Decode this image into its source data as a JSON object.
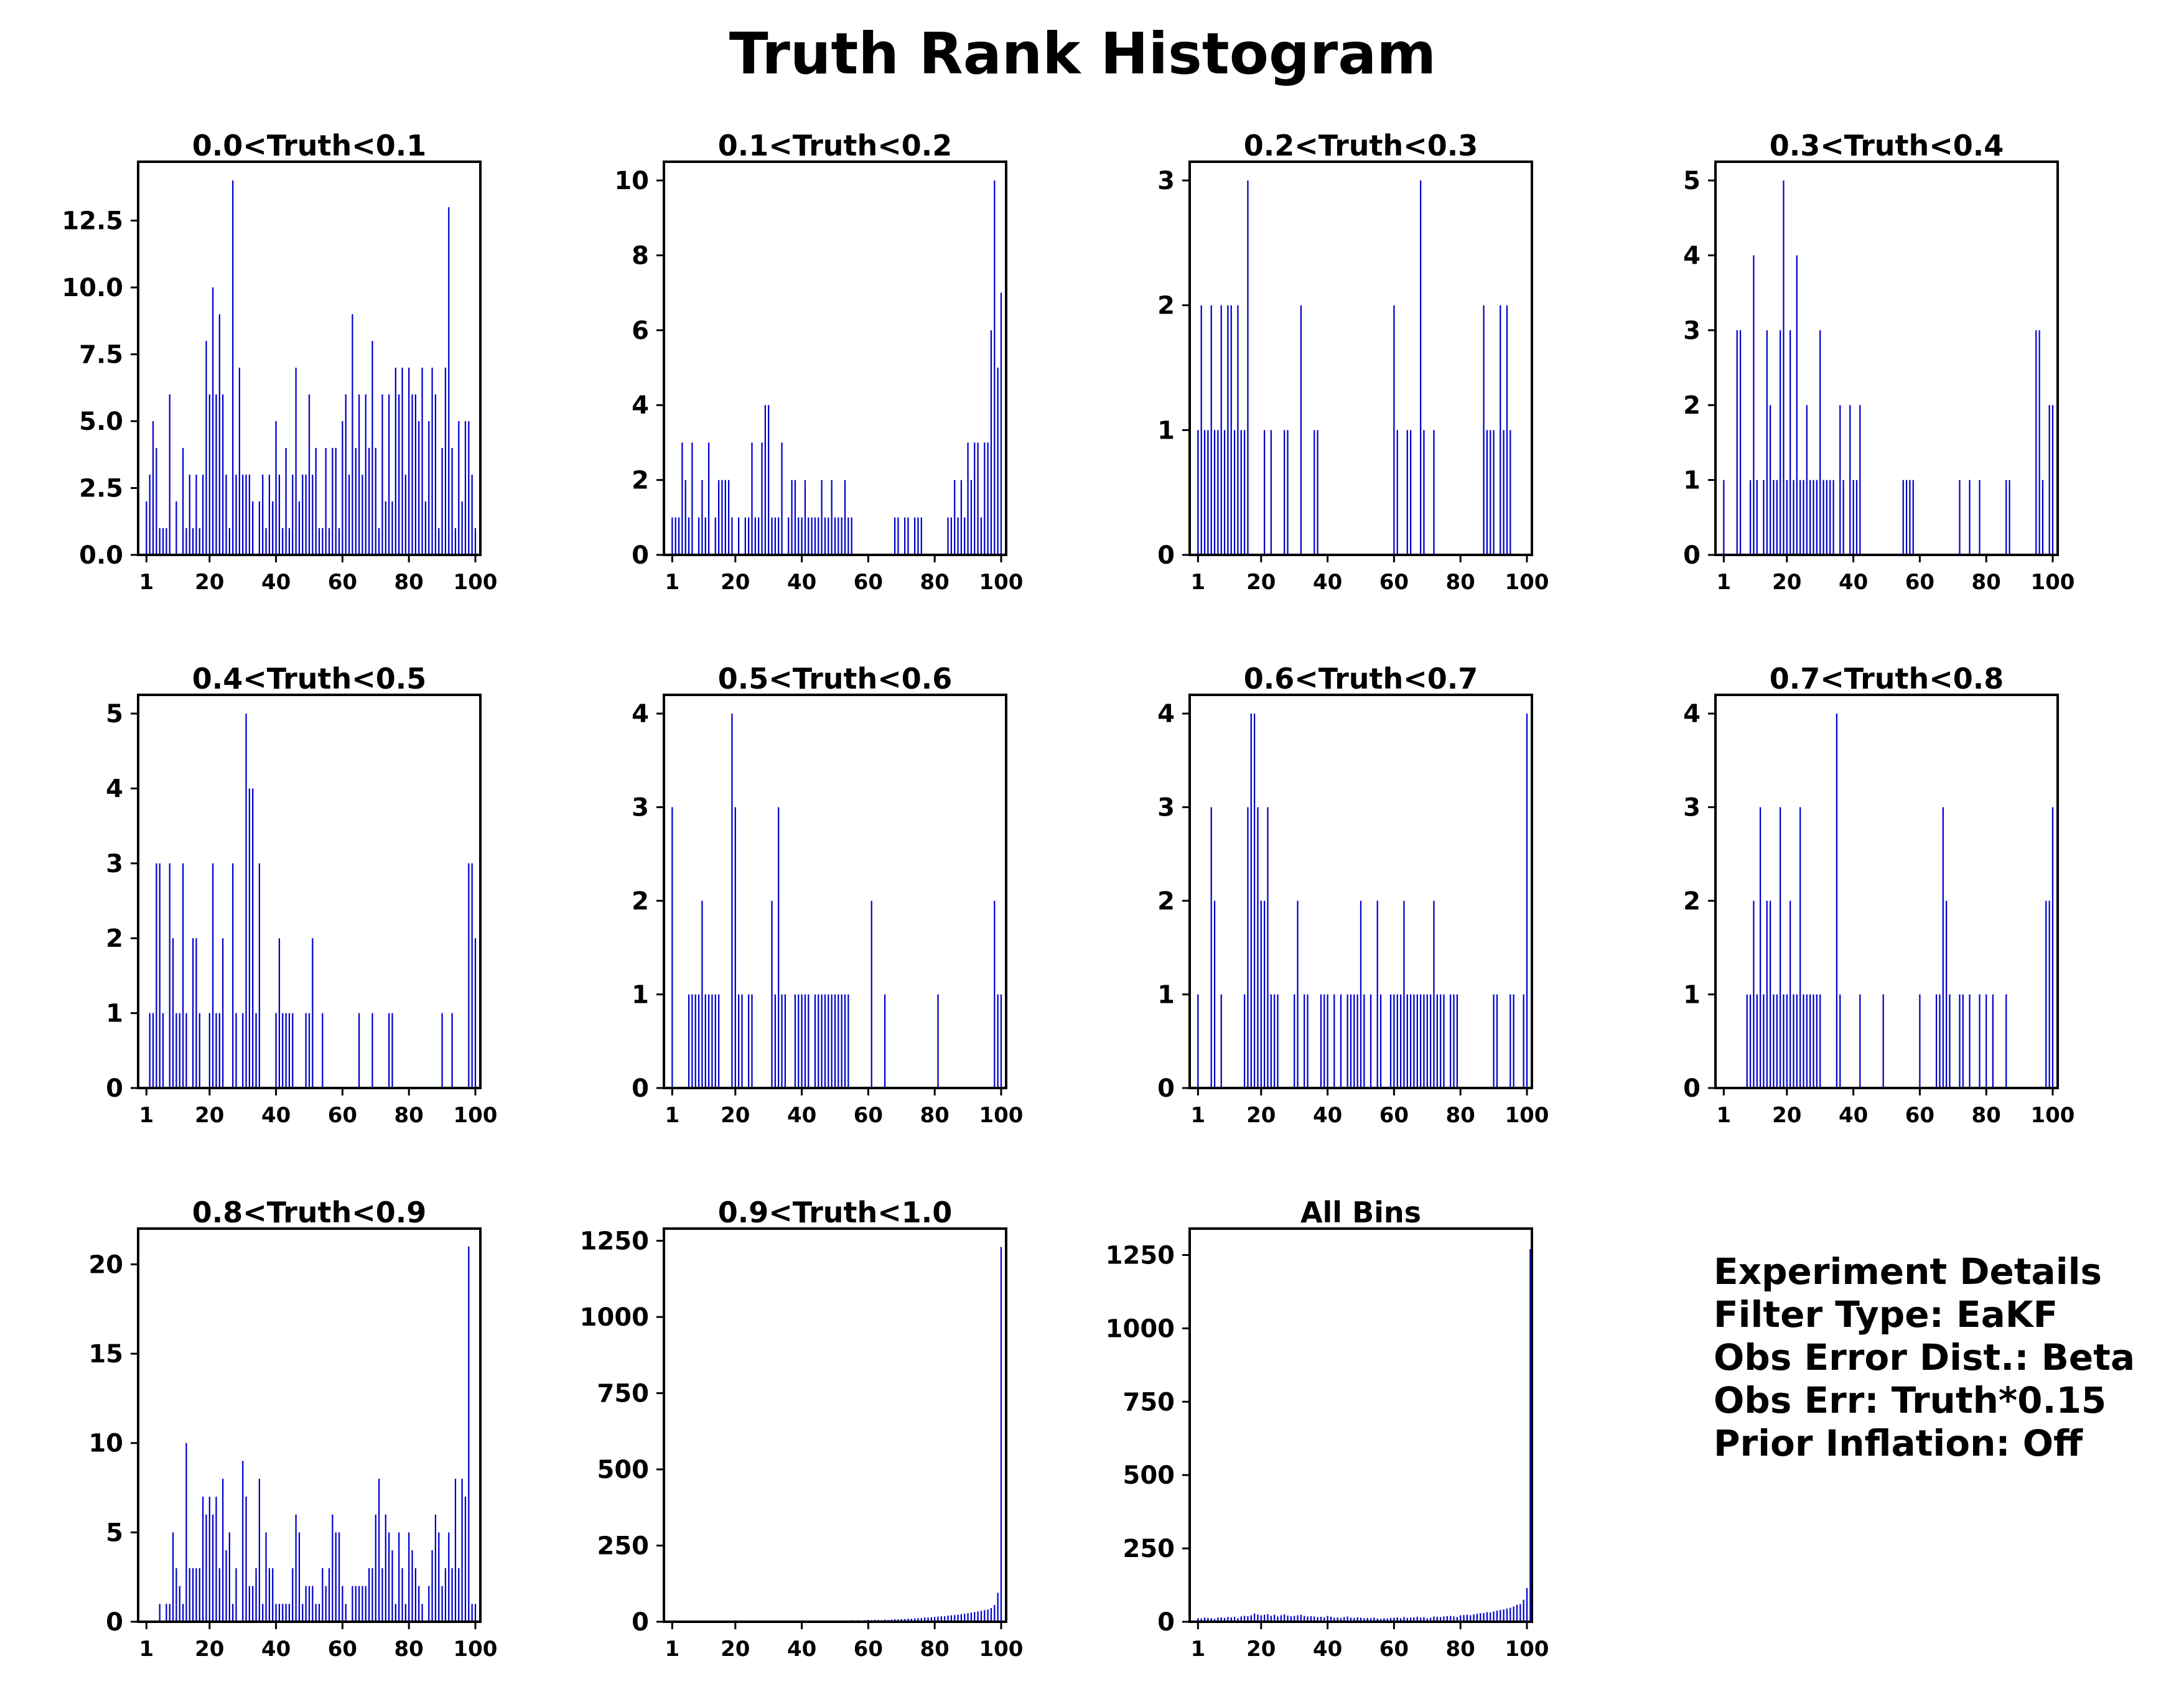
{
  "title": "Truth Rank Histogram",
  "bar_color": "#0000cc",
  "details": {
    "heading": "Experiment Details",
    "filter_type": "Filter Type: EaKF",
    "obs_error_dist": "Obs Error Dist.: Beta",
    "obs_err": "Obs Err: Truth*0.15",
    "prior_inflation": "Prior Inflation: Off"
  },
  "chart_data": [
    {
      "type": "bar",
      "title": "0.0<Truth<0.1",
      "xlim": [
        1,
        100
      ],
      "ylim": [
        0,
        14.7
      ],
      "xticks": [
        1,
        20,
        40,
        60,
        80,
        100
      ],
      "xtick_labels": [
        "1",
        "20",
        "40",
        "60",
        "80",
        "100"
      ],
      "yticks": [
        0,
        2.5,
        5,
        7.5,
        10,
        12.5
      ],
      "ytick_labels": [
        "0.0",
        "2.5",
        "5.0",
        "7.5",
        "10.0",
        "12.5"
      ],
      "values": [
        2,
        3,
        5,
        4,
        1,
        1,
        1,
        6,
        0,
        2,
        0,
        4,
        1,
        3,
        1,
        3,
        1,
        3,
        8,
        6,
        10,
        6,
        9,
        6,
        3,
        1,
        14,
        3,
        7,
        3,
        3,
        3,
        2,
        0,
        2,
        3,
        1,
        3,
        2,
        5,
        3,
        1,
        4,
        1,
        3,
        7,
        2,
        3,
        3,
        6,
        3,
        4,
        1,
        1,
        4,
        1,
        4,
        4,
        1,
        5,
        6,
        3,
        9,
        4,
        6,
        3,
        6,
        4,
        8,
        4,
        1,
        6,
        2,
        6,
        2,
        7,
        6,
        7,
        3,
        7,
        6,
        6,
        5,
        7,
        2,
        5,
        7,
        6,
        1,
        4,
        7,
        13,
        4,
        1,
        5,
        2,
        5,
        5,
        3,
        1
      ]
    },
    {
      "type": "bar",
      "title": "0.1<Truth<0.2",
      "xlim": [
        1,
        100
      ],
      "ylim": [
        0,
        10.5
      ],
      "xticks": [
        1,
        20,
        40,
        60,
        80,
        100
      ],
      "xtick_labels": [
        "1",
        "20",
        "40",
        "60",
        "80",
        "100"
      ],
      "yticks": [
        0,
        2,
        4,
        6,
        8,
        10
      ],
      "ytick_labels": [
        "0",
        "2",
        "4",
        "6",
        "8",
        "10"
      ],
      "values": [
        1,
        1,
        1,
        3,
        2,
        1,
        3,
        0,
        1,
        2,
        1,
        3,
        0,
        1,
        2,
        2,
        2,
        2,
        1,
        0,
        1,
        0,
        1,
        1,
        3,
        1,
        1,
        3,
        4,
        4,
        1,
        1,
        1,
        3,
        0,
        1,
        2,
        2,
        1,
        1,
        2,
        1,
        1,
        1,
        1,
        2,
        1,
        1,
        2,
        1,
        1,
        1,
        2,
        1,
        1,
        0,
        0,
        0,
        0,
        0,
        0,
        0,
        0,
        0,
        0,
        0,
        0,
        1,
        1,
        0,
        1,
        1,
        0,
        1,
        1,
        1,
        0,
        0,
        0,
        0,
        0,
        0,
        0,
        1,
        1,
        2,
        1,
        2,
        1,
        3,
        2,
        3,
        3,
        1,
        3,
        3,
        6,
        10,
        5,
        7
      ]
    },
    {
      "type": "bar",
      "title": "0.2<Truth<0.3",
      "xlim": [
        1,
        100
      ],
      "ylim": [
        0,
        3.15
      ],
      "xticks": [
        1,
        20,
        40,
        60,
        80,
        100
      ],
      "xtick_labels": [
        "1",
        "20",
        "40",
        "60",
        "80",
        "100"
      ],
      "yticks": [
        0,
        1,
        2,
        3
      ],
      "ytick_labels": [
        "0",
        "1",
        "2",
        "3"
      ],
      "values": [
        1,
        2,
        1,
        1,
        2,
        1,
        1,
        2,
        1,
        2,
        2,
        1,
        2,
        1,
        1,
        3,
        0,
        0,
        0,
        0,
        1,
        0,
        1,
        0,
        0,
        0,
        1,
        1,
        0,
        0,
        0,
        2,
        0,
        0,
        0,
        1,
        1,
        0,
        0,
        0,
        0,
        0,
        0,
        0,
        0,
        0,
        0,
        0,
        0,
        0,
        0,
        0,
        0,
        0,
        0,
        0,
        0,
        0,
        0,
        2,
        1,
        0,
        0,
        1,
        1,
        0,
        0,
        3,
        1,
        0,
        0,
        1,
        0,
        0,
        0,
        0,
        0,
        0,
        0,
        0,
        0,
        0,
        0,
        0,
        0,
        0,
        2,
        1,
        1,
        1,
        0,
        2,
        1,
        2,
        1,
        0,
        0,
        0,
        0,
        0
      ]
    },
    {
      "type": "bar",
      "title": "0.3<Truth<0.4",
      "xlim": [
        1,
        100
      ],
      "ylim": [
        0,
        5.25
      ],
      "xticks": [
        1,
        20,
        40,
        60,
        80,
        100
      ],
      "xtick_labels": [
        "1",
        "20",
        "40",
        "60",
        "80",
        "100"
      ],
      "yticks": [
        0,
        1,
        2,
        3,
        4,
        5
      ],
      "ytick_labels": [
        "0",
        "1",
        "2",
        "3",
        "4",
        "5"
      ],
      "values": [
        1,
        0,
        0,
        0,
        3,
        3,
        0,
        0,
        1,
        4,
        1,
        0,
        1,
        3,
        2,
        1,
        1,
        3,
        5,
        1,
        3,
        1,
        4,
        1,
        1,
        2,
        1,
        1,
        1,
        3,
        1,
        1,
        1,
        1,
        0,
        2,
        1,
        0,
        2,
        1,
        1,
        2,
        0,
        0,
        0,
        0,
        0,
        0,
        0,
        0,
        0,
        0,
        0,
        0,
        1,
        1,
        1,
        1,
        0,
        0,
        0,
        0,
        0,
        0,
        0,
        0,
        0,
        0,
        0,
        0,
        0,
        1,
        0,
        0,
        1,
        0,
        0,
        1,
        0,
        0,
        0,
        0,
        0,
        0,
        0,
        1,
        1,
        0,
        0,
        0,
        0,
        0,
        0,
        0,
        3,
        3,
        1,
        0,
        2,
        2
      ]
    },
    {
      "type": "bar",
      "title": "0.4<Truth<0.5",
      "xlim": [
        1,
        100
      ],
      "ylim": [
        0,
        5.25
      ],
      "xticks": [
        1,
        20,
        40,
        60,
        80,
        100
      ],
      "xtick_labels": [
        "1",
        "20",
        "40",
        "60",
        "80",
        "100"
      ],
      "yticks": [
        0,
        1,
        2,
        3,
        4,
        5
      ],
      "ytick_labels": [
        "0",
        "1",
        "2",
        "3",
        "4",
        "5"
      ],
      "values": [
        0,
        1,
        1,
        3,
        3,
        1,
        0,
        3,
        2,
        1,
        1,
        3,
        1,
        0,
        2,
        2,
        1,
        0,
        0,
        1,
        3,
        1,
        1,
        2,
        0,
        0,
        3,
        1,
        0,
        1,
        5,
        4,
        4,
        1,
        3,
        0,
        0,
        0,
        0,
        1,
        2,
        1,
        1,
        1,
        1,
        0,
        0,
        0,
        1,
        1,
        2,
        0,
        0,
        1,
        0,
        0,
        0,
        0,
        0,
        0,
        0,
        0,
        0,
        0,
        1,
        0,
        0,
        0,
        1,
        0,
        0,
        0,
        0,
        1,
        1,
        0,
        0,
        0,
        0,
        0,
        0,
        0,
        0,
        0,
        0,
        0,
        0,
        0,
        0,
        1,
        0,
        0,
        1,
        0,
        0,
        0,
        0,
        3,
        3,
        2
      ]
    },
    {
      "type": "bar",
      "title": "0.5<Truth<0.6",
      "xlim": [
        1,
        100
      ],
      "ylim": [
        0,
        4.2
      ],
      "xticks": [
        1,
        20,
        40,
        60,
        80,
        100
      ],
      "xtick_labels": [
        "1",
        "20",
        "40",
        "60",
        "80",
        "100"
      ],
      "yticks": [
        0,
        1,
        2,
        3,
        4
      ],
      "ytick_labels": [
        "0",
        "1",
        "2",
        "3",
        "4"
      ],
      "values": [
        3,
        0,
        0,
        0,
        0,
        1,
        1,
        1,
        1,
        2,
        1,
        1,
        1,
        1,
        1,
        0,
        0,
        0,
        4,
        3,
        1,
        1,
        0,
        1,
        1,
        0,
        0,
        0,
        0,
        0,
        2,
        1,
        3,
        1,
        1,
        0,
        0,
        1,
        1,
        1,
        1,
        1,
        0,
        1,
        1,
        1,
        1,
        1,
        1,
        1,
        1,
        1,
        1,
        1,
        0,
        0,
        0,
        0,
        0,
        0,
        2,
        0,
        0,
        0,
        1,
        0,
        0,
        0,
        0,
        0,
        0,
        0,
        0,
        0,
        0,
        0,
        0,
        0,
        0,
        0,
        1,
        0,
        0,
        0,
        0,
        0,
        0,
        0,
        0,
        0,
        0,
        0,
        0,
        0,
        0,
        0,
        0,
        2,
        1,
        1
      ]
    },
    {
      "type": "bar",
      "title": "0.6<Truth<0.7",
      "xlim": [
        1,
        100
      ],
      "ylim": [
        0,
        4.2
      ],
      "xticks": [
        1,
        20,
        40,
        60,
        80,
        100
      ],
      "xtick_labels": [
        "1",
        "20",
        "40",
        "60",
        "80",
        "100"
      ],
      "yticks": [
        0,
        1,
        2,
        3,
        4
      ],
      "ytick_labels": [
        "0",
        "1",
        "2",
        "3",
        "4"
      ],
      "values": [
        1,
        0,
        0,
        0,
        3,
        2,
        0,
        1,
        0,
        0,
        0,
        0,
        0,
        0,
        1,
        3,
        4,
        4,
        3,
        2,
        2,
        3,
        1,
        1,
        1,
        0,
        0,
        0,
        0,
        1,
        2,
        0,
        1,
        1,
        0,
        0,
        0,
        1,
        1,
        1,
        0,
        1,
        0,
        1,
        0,
        1,
        1,
        1,
        1,
        2,
        1,
        0,
        1,
        0,
        2,
        1,
        0,
        0,
        1,
        1,
        1,
        1,
        2,
        1,
        1,
        1,
        1,
        1,
        1,
        1,
        1,
        2,
        1,
        1,
        1,
        0,
        1,
        1,
        1,
        0,
        0,
        0,
        0,
        0,
        0,
        0,
        0,
        0,
        0,
        1,
        1,
        0,
        0,
        0,
        1,
        1,
        0,
        0,
        1,
        4
      ]
    },
    {
      "type": "bar",
      "title": "0.7<Truth<0.8",
      "xlim": [
        1,
        100
      ],
      "ylim": [
        0,
        4.2
      ],
      "xticks": [
        1,
        20,
        40,
        60,
        80,
        100
      ],
      "xtick_labels": [
        "1",
        "20",
        "40",
        "60",
        "80",
        "100"
      ],
      "yticks": [
        0,
        1,
        2,
        3,
        4
      ],
      "ytick_labels": [
        "0",
        "1",
        "2",
        "3",
        "4"
      ],
      "values": [
        0,
        0,
        0,
        0,
        0,
        0,
        0,
        1,
        1,
        2,
        1,
        3,
        1,
        2,
        2,
        1,
        1,
        3,
        1,
        1,
        2,
        1,
        1,
        3,
        1,
        1,
        1,
        1,
        1,
        1,
        0,
        0,
        0,
        0,
        4,
        1,
        0,
        0,
        0,
        0,
        0,
        1,
        0,
        0,
        0,
        0,
        0,
        0,
        1,
        0,
        0,
        0,
        0,
        0,
        0,
        0,
        0,
        0,
        0,
        1,
        0,
        0,
        0,
        0,
        1,
        1,
        3,
        2,
        1,
        0,
        0,
        1,
        1,
        0,
        1,
        0,
        0,
        1,
        0,
        1,
        0,
        1,
        0,
        0,
        0,
        1,
        0,
        0,
        0,
        0,
        0,
        0,
        0,
        0,
        0,
        0,
        0,
        2,
        2,
        3
      ]
    },
    {
      "type": "bar",
      "title": "0.8<Truth<0.9",
      "xlim": [
        1,
        100
      ],
      "ylim": [
        0,
        22
      ],
      "xticks": [
        1,
        20,
        40,
        60,
        80,
        100
      ],
      "xtick_labels": [
        "1",
        "20",
        "40",
        "60",
        "80",
        "100"
      ],
      "yticks": [
        0,
        5,
        10,
        15,
        20
      ],
      "ytick_labels": [
        "0",
        "5",
        "10",
        "15",
        "20"
      ],
      "values": [
        0,
        0,
        0,
        0,
        1,
        0,
        1,
        1,
        5,
        3,
        2,
        1,
        10,
        3,
        3,
        3,
        3,
        7,
        6,
        7,
        6,
        7,
        3,
        8,
        4,
        5,
        1,
        3,
        0,
        9,
        7,
        2,
        2,
        3,
        8,
        1,
        5,
        3,
        3,
        1,
        1,
        1,
        1,
        1,
        3,
        6,
        5,
        1,
        2,
        2,
        2,
        1,
        1,
        3,
        2,
        3,
        6,
        5,
        5,
        2,
        1,
        0,
        2,
        2,
        2,
        2,
        2,
        3,
        3,
        6,
        8,
        3,
        6,
        5,
        4,
        1,
        5,
        3,
        1,
        5,
        4,
        3,
        2,
        1,
        0,
        2,
        4,
        6,
        5,
        2,
        3,
        5,
        3,
        8,
        3,
        8,
        7,
        21,
        1,
        1
      ]
    },
    {
      "type": "bar",
      "title": "0.9<Truth<1.0",
      "xlim": [
        1,
        100
      ],
      "ylim": [
        0,
        1290
      ],
      "xticks": [
        1,
        20,
        40,
        60,
        80,
        100
      ],
      "xtick_labels": [
        "1",
        "20",
        "40",
        "60",
        "80",
        "100"
      ],
      "yticks": [
        0,
        250,
        500,
        750,
        1000,
        1250
      ],
      "ytick_labels": [
        "0",
        "250",
        "500",
        "750",
        "1000",
        "1250"
      ],
      "values": [
        0,
        0,
        0,
        0,
        0,
        0,
        0,
        0,
        0,
        0,
        0,
        0,
        0,
        0,
        0,
        0,
        0,
        0,
        0,
        0,
        0,
        0,
        0,
        1,
        1,
        1,
        1,
        1,
        1,
        2,
        2,
        2,
        1,
        2,
        2,
        1,
        3,
        2,
        3,
        2,
        2,
        2,
        3,
        2,
        3,
        2,
        3,
        3,
        2,
        3,
        3,
        4,
        3,
        4,
        5,
        4,
        5,
        4,
        5,
        6,
        5,
        6,
        6,
        5,
        7,
        6,
        7,
        8,
        8,
        9,
        9,
        10,
        10,
        11,
        12,
        12,
        14,
        14,
        15,
        16,
        17,
        18,
        18,
        20,
        21,
        22,
        23,
        25,
        26,
        28,
        30,
        32,
        34,
        36,
        38,
        40,
        45,
        55,
        95,
        1230
      ]
    },
    {
      "type": "bar",
      "title": "All Bins",
      "xlim": [
        1,
        100
      ],
      "ylim": [
        0,
        1340
      ],
      "xticks": [
        1,
        20,
        40,
        60,
        80,
        100
      ],
      "xtick_labels": [
        "1",
        "20",
        "40",
        "60",
        "80",
        "100"
      ],
      "yticks": [
        0,
        250,
        500,
        750,
        1000,
        1250
      ],
      "ytick_labels": [
        "0",
        "250",
        "500",
        "750",
        "1000",
        "1250"
      ],
      "values": [
        12,
        11,
        14,
        13,
        12,
        10,
        14,
        15,
        13,
        16,
        15,
        17,
        12,
        18,
        20,
        19,
        22,
        28,
        25,
        22,
        24,
        26,
        20,
        24,
        18,
        22,
        25,
        21,
        19,
        20,
        22,
        24,
        20,
        18,
        19,
        18,
        16,
        17,
        15,
        20,
        17,
        14,
        15,
        13,
        16,
        18,
        14,
        13,
        15,
        14,
        12,
        13,
        12,
        14,
        11,
        10,
        12,
        11,
        13,
        14,
        15,
        12,
        16,
        13,
        14,
        15,
        17,
        14,
        16,
        12,
        14,
        18,
        17,
        16,
        18,
        19,
        20,
        18,
        16,
        22,
        23,
        24,
        22,
        25,
        27,
        29,
        30,
        33,
        32,
        35,
        38,
        40,
        42,
        45,
        48,
        52,
        58,
        60,
        75,
        115,
        1270
      ]
    }
  ]
}
